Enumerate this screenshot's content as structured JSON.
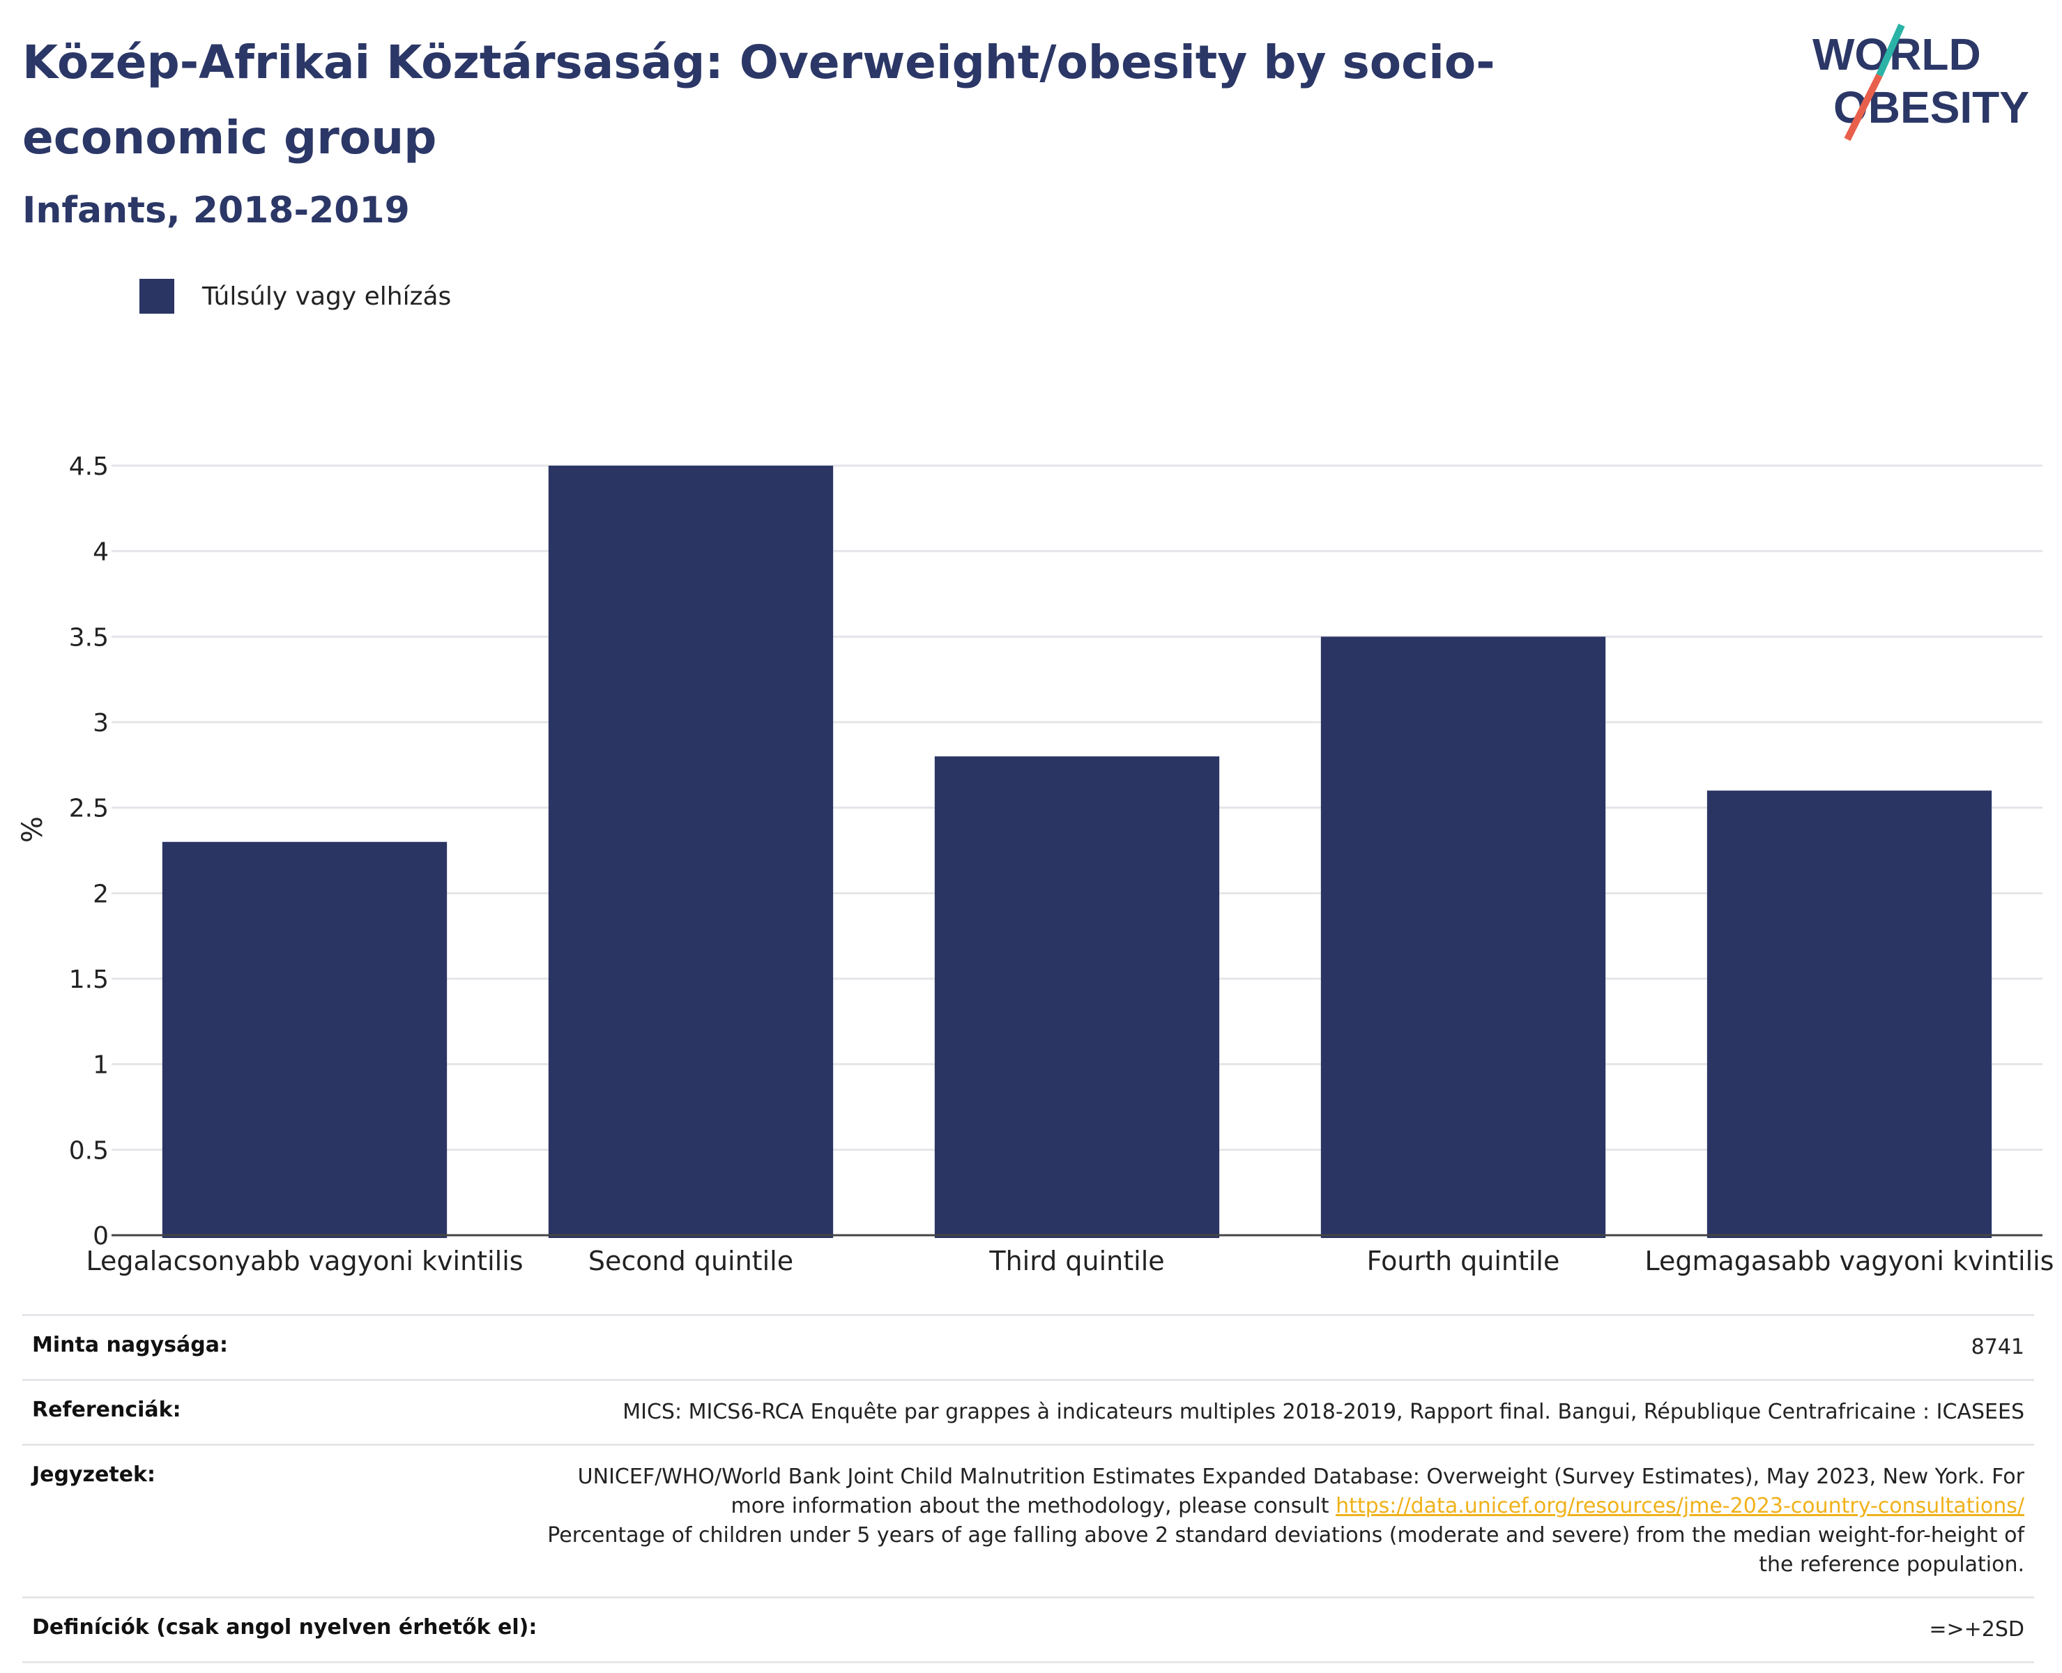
{
  "header": {
    "title": "Közép-Afrikai Köztársaság: Overweight/obesity by socio-economic group",
    "subtitle": "Infants, 2018-2019"
  },
  "logo": {
    "line1": "WORLD",
    "line2": "OBESITY",
    "accent_teal": "#2ab3a6",
    "accent_red": "#e8604c"
  },
  "legend": {
    "label": "Túlsúly vagy elhízás"
  },
  "colors": {
    "bar": "#2a3563",
    "grid": "#e5e5ea",
    "axis": "#444444"
  },
  "chart_data": {
    "type": "bar",
    "categories": [
      "Legalacsonyabb vagyoni kvintilis",
      "Second quintile",
      "Third quintile",
      "Fourth quintile",
      "Legmagasabb vagyoni kvintilis"
    ],
    "series": [
      {
        "name": "Túlsúly vagy elhízás",
        "values": [
          2.3,
          4.5,
          2.8,
          3.5,
          2.6
        ]
      }
    ],
    "ylabel": "%",
    "ylim": [
      0,
      4.5
    ],
    "yticks": [
      0,
      0.5,
      1,
      1.5,
      2,
      2.5,
      3,
      3.5,
      4,
      4.5
    ],
    "ytick_labels": [
      "0",
      "0.5",
      "1",
      "1.5",
      "2",
      "2.5",
      "3",
      "3.5",
      "4",
      "4.5"
    ],
    "grid": true,
    "legend_position": "top-left"
  },
  "info": {
    "sample_label": "Minta nagysága:",
    "sample_value": "8741",
    "references_label": "Referenciák:",
    "references_value": "MICS: MICS6-RCA Enquête par grappes à indicateurs multiples 2018-2019, Rapport final. Bangui, République Centrafricaine : ICASEES",
    "notes_label": "Jegyzetek:",
    "notes_text_1": "UNICEF/WHO/World Bank Joint Child Malnutrition Estimates Expanded Database: Overweight (Survey Estimates), May 2023, New York. For more information about the methodology, please consult",
    "notes_link": "https://data.unicef.org/resources/jme-2023-country-consultations/",
    "notes_text_2": "Percentage of children under 5 years of age falling above 2 standard deviations (moderate and severe) from the median weight-for-height of the reference population.",
    "definitions_label": "Definíciók (csak angol nyelven érhetők el):",
    "definitions_value": "=>+2SD"
  }
}
